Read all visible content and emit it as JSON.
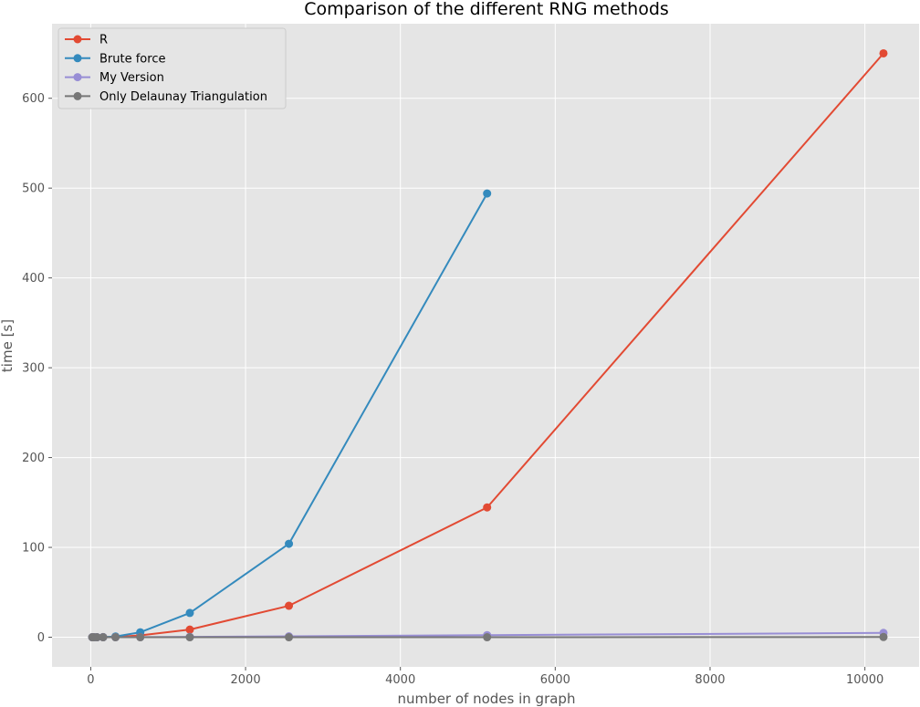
{
  "chart_data": {
    "type": "line",
    "title": "Comparison of the different RNG methods",
    "xlabel": "number of nodes in graph",
    "ylabel": "time [s]",
    "xlim": [
      -500,
      10700
    ],
    "ylim": [
      -33,
      683
    ],
    "xticks": [
      0,
      2000,
      4000,
      6000,
      8000,
      10000
    ],
    "yticks": [
      0,
      100,
      200,
      300,
      400,
      500,
      600
    ],
    "grid": true,
    "style": "ggplot",
    "legend_position": "top-left",
    "series": [
      {
        "name": "R",
        "color": "#E24A33",
        "x": [
          20,
          40,
          80,
          160,
          320,
          640,
          1280,
          2560,
          5120,
          10240
        ],
        "y": [
          0,
          0,
          0,
          0.1,
          0.4,
          2,
          8.5,
          35,
          144.5,
          650
        ]
      },
      {
        "name": "Brute force",
        "color": "#348ABD",
        "x": [
          20,
          40,
          80,
          160,
          320,
          640,
          1280,
          2560,
          5120
        ],
        "y": [
          0,
          0,
          0,
          0.1,
          0.8,
          5.5,
          27,
          104,
          494
        ]
      },
      {
        "name": "My Version",
        "color": "#988ED5",
        "x": [
          20,
          40,
          80,
          160,
          320,
          640,
          1280,
          2560,
          5120,
          10240
        ],
        "y": [
          0,
          0,
          0,
          0,
          0,
          0.1,
          0.4,
          1,
          2.3,
          4.8
        ]
      },
      {
        "name": "Only Delaunay Triangulation",
        "color": "#777777",
        "x": [
          20,
          40,
          80,
          160,
          320,
          640,
          1280,
          2560,
          5120,
          10240
        ],
        "y": [
          0,
          0,
          0,
          0,
          0,
          0,
          0,
          0,
          0,
          0.2
        ]
      }
    ]
  }
}
